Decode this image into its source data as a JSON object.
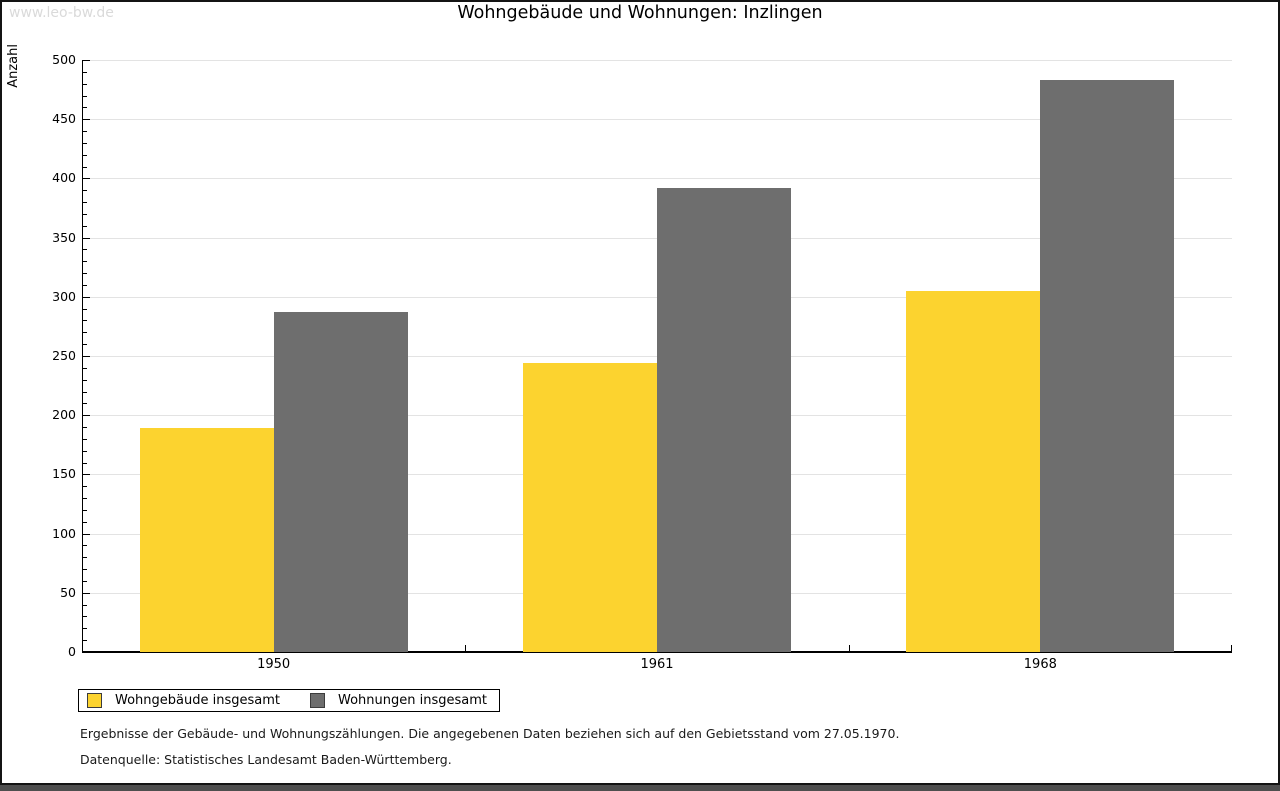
{
  "page": {
    "watermark": "www.leo-bw.de",
    "title": "Wohngebäude und Wohnungen: Inzlingen"
  },
  "chart_data": {
    "type": "bar",
    "title": "Wohngebäude und Wohnungen: Inzlingen",
    "xlabel": "",
    "ylabel": "Anzahl",
    "categories": [
      "1950",
      "1961",
      "1968"
    ],
    "series": [
      {
        "name": "Wohngebäude insgesamt",
        "color": "#fcd32f",
        "values": [
          189,
          244,
          305
        ]
      },
      {
        "name": "Wohnungen insgesamt",
        "color": "#6e6e6e",
        "values": [
          287,
          392,
          483
        ]
      }
    ],
    "ylim": [
      0,
      500
    ],
    "y_major_step": 50,
    "y_minor_step": 10,
    "grid": "horizontal-major-gridlines",
    "legend_position": "bottom-left"
  },
  "footnotes": {
    "line1": "Ergebnisse der Gebäude- und Wohnungszählungen. Die angegebenen Daten beziehen sich auf den Gebietsstand vom 27.05.1970.",
    "line2": "Datenquelle: Statistisches Landesamt Baden-Württemberg."
  },
  "colors": {
    "series1": "#fcd32f",
    "series2": "#6e6e6e",
    "gridline": "#e3e3e3",
    "axis": "#000000",
    "watermark": "#dadada",
    "frame_border": "#141414",
    "bottom_strip": "#4e4e4e"
  }
}
